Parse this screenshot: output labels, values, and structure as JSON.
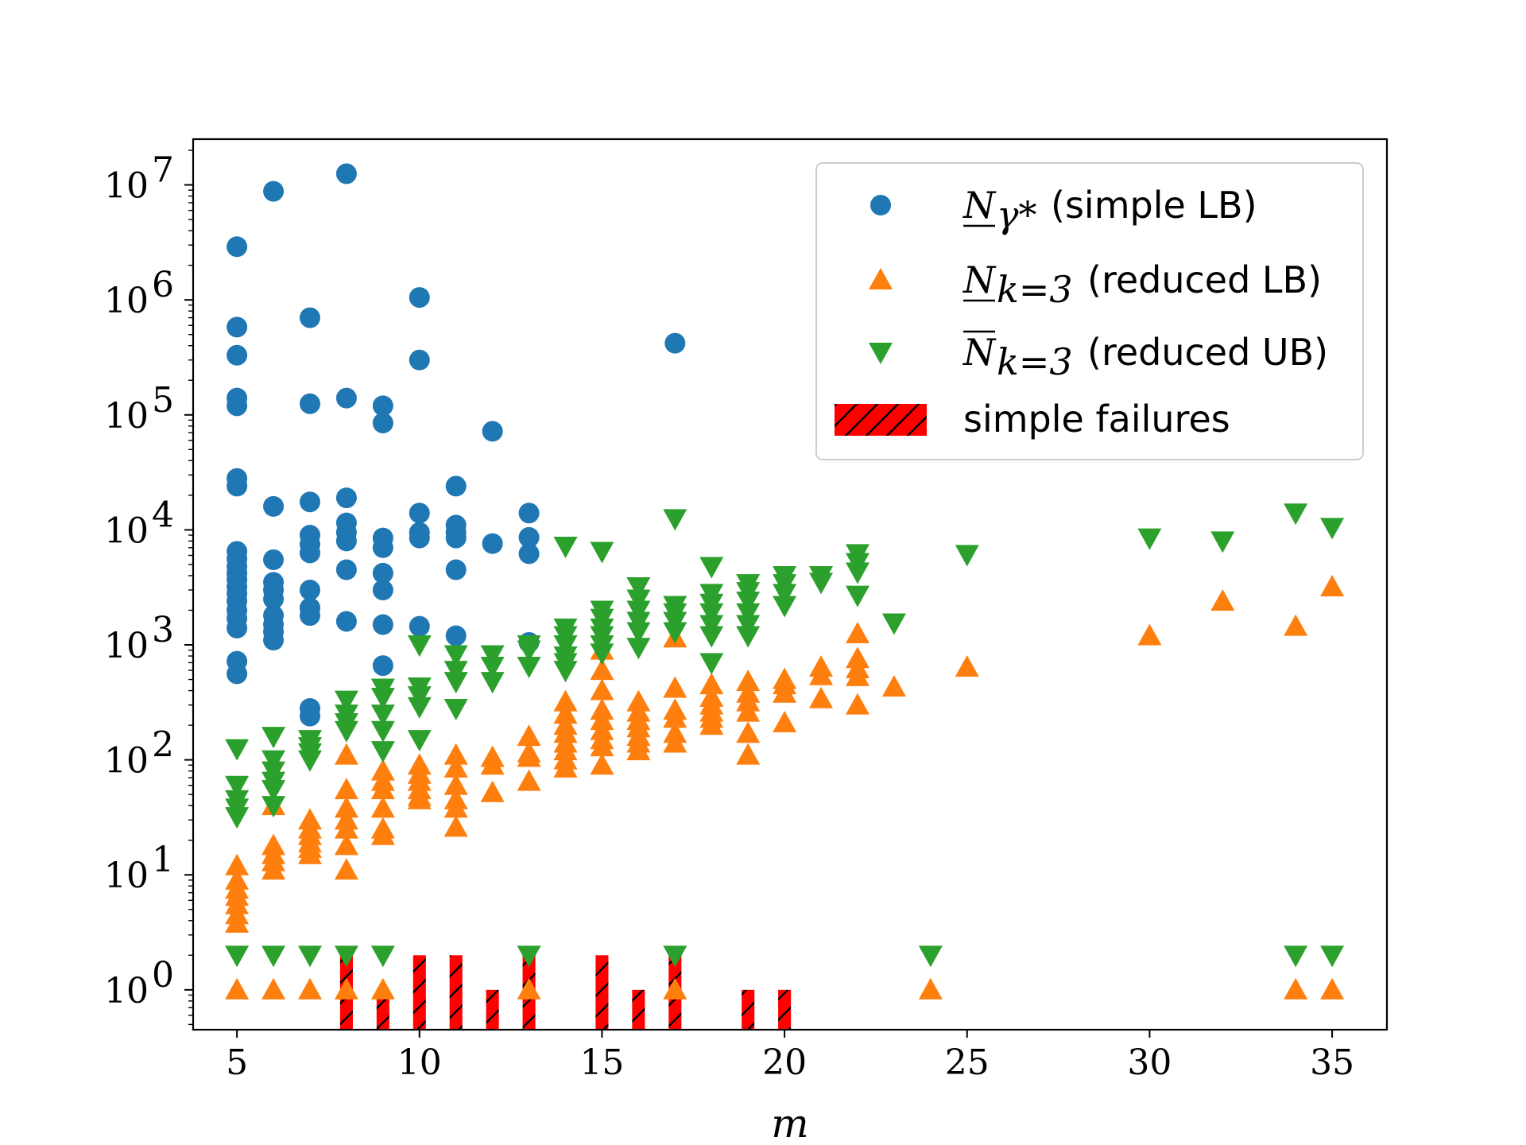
{
  "chart_data": {
    "type": "scatter",
    "title": "",
    "xlabel": "m",
    "ylabel": "",
    "xlim": [
      3.8,
      36.5
    ],
    "ylim": [
      0.45,
      25000000
    ],
    "yscale": "log",
    "grid": false,
    "legend_position": "top-right",
    "x_ticks": [
      5,
      10,
      15,
      20,
      25,
      30,
      35
    ],
    "y_ticks": [
      {
        "value": 1,
        "base": "10",
        "exp": "0"
      },
      {
        "value": 10,
        "base": "10",
        "exp": "1"
      },
      {
        "value": 100,
        "base": "10",
        "exp": "2"
      },
      {
        "value": 1000,
        "base": "10",
        "exp": "3"
      },
      {
        "value": 10000,
        "base": "10",
        "exp": "4"
      },
      {
        "value": 100000,
        "base": "10",
        "exp": "5"
      },
      {
        "value": 1000000,
        "base": "10",
        "exp": "6"
      },
      {
        "value": 10000000,
        "base": "10",
        "exp": "7"
      }
    ],
    "series": [
      {
        "name": "simple LB",
        "legend_symbol": "N",
        "legend_sub": "γ*",
        "legend_symbol_bar": "under",
        "legend_suffix": "(simple LB)",
        "marker": "circle",
        "color": "#1f77b4",
        "points": [
          [
            5,
            2900000
          ],
          [
            5,
            580000
          ],
          [
            5,
            330000
          ],
          [
            5,
            140000
          ],
          [
            5,
            120000
          ],
          [
            5,
            28000
          ],
          [
            5,
            24000
          ],
          [
            5,
            6500
          ],
          [
            5,
            5600
          ],
          [
            5,
            4800
          ],
          [
            5,
            4200
          ],
          [
            5,
            3700
          ],
          [
            5,
            3200
          ],
          [
            5,
            2800
          ],
          [
            5,
            2400
          ],
          [
            5,
            2000
          ],
          [
            5,
            1700
          ],
          [
            5,
            1400
          ],
          [
            5,
            720
          ],
          [
            5,
            560
          ],
          [
            6,
            8800000
          ],
          [
            6,
            16000
          ],
          [
            6,
            5500
          ],
          [
            6,
            3500
          ],
          [
            6,
            3000
          ],
          [
            6,
            2500
          ],
          [
            6,
            1800
          ],
          [
            6,
            1500
          ],
          [
            6,
            1300
          ],
          [
            6,
            1100
          ],
          [
            7,
            700000
          ],
          [
            7,
            125000
          ],
          [
            7,
            17500
          ],
          [
            7,
            9000
          ],
          [
            7,
            7500
          ],
          [
            7,
            6300
          ],
          [
            7,
            3000
          ],
          [
            7,
            2100
          ],
          [
            7,
            1800
          ],
          [
            7,
            280
          ],
          [
            7,
            240
          ],
          [
            8,
            12500000
          ],
          [
            8,
            140000
          ],
          [
            8,
            19000
          ],
          [
            8,
            11500
          ],
          [
            8,
            9500
          ],
          [
            8,
            8000
          ],
          [
            8,
            4500
          ],
          [
            8,
            1600
          ],
          [
            9,
            120000
          ],
          [
            9,
            85000
          ],
          [
            9,
            8500
          ],
          [
            9,
            7000
          ],
          [
            9,
            4200
          ],
          [
            9,
            3000
          ],
          [
            9,
            1500
          ],
          [
            9,
            660
          ],
          [
            10,
            1050000
          ],
          [
            10,
            300000
          ],
          [
            10,
            14000
          ],
          [
            10,
            9500
          ],
          [
            10,
            8500
          ],
          [
            10,
            1450
          ],
          [
            11,
            24000
          ],
          [
            11,
            11000
          ],
          [
            11,
            9500
          ],
          [
            11,
            8500
          ],
          [
            11,
            4500
          ],
          [
            11,
            1200
          ],
          [
            12,
            72000
          ],
          [
            12,
            7600
          ],
          [
            13,
            14000
          ],
          [
            13,
            8600
          ],
          [
            13,
            6200
          ],
          [
            13,
            1050
          ],
          [
            17,
            420000
          ]
        ]
      },
      {
        "name": "reduced LB",
        "legend_symbol": "N",
        "legend_sub": "k=3",
        "legend_symbol_bar": "under",
        "legend_suffix": "(reduced LB)",
        "marker": "triangle-up",
        "color": "#ff7f0e",
        "points": [
          [
            5,
            12
          ],
          [
            5,
            9
          ],
          [
            5,
            7.5
          ],
          [
            5,
            6.5
          ],
          [
            5,
            5.5
          ],
          [
            5,
            4.5
          ],
          [
            5,
            3.8
          ],
          [
            5,
            1
          ],
          [
            6,
            40
          ],
          [
            6,
            18
          ],
          [
            6,
            15
          ],
          [
            6,
            13
          ],
          [
            6,
            11
          ],
          [
            6,
            1
          ],
          [
            7,
            30
          ],
          [
            7,
            25
          ],
          [
            7,
            22
          ],
          [
            7,
            19
          ],
          [
            7,
            17
          ],
          [
            7,
            15
          ],
          [
            7,
            1
          ],
          [
            8,
            110
          ],
          [
            8,
            55
          ],
          [
            8,
            38
          ],
          [
            8,
            30
          ],
          [
            8,
            25
          ],
          [
            8,
            18
          ],
          [
            8,
            11
          ],
          [
            8,
            1
          ],
          [
            9,
            80
          ],
          [
            9,
            65
          ],
          [
            9,
            55
          ],
          [
            9,
            38
          ],
          [
            9,
            25
          ],
          [
            9,
            22
          ],
          [
            9,
            1
          ],
          [
            10,
            90
          ],
          [
            10,
            75
          ],
          [
            10,
            65
          ],
          [
            10,
            55
          ],
          [
            10,
            48
          ],
          [
            10,
            45
          ],
          [
            11,
            110
          ],
          [
            11,
            85
          ],
          [
            11,
            60
          ],
          [
            11,
            45
          ],
          [
            11,
            38
          ],
          [
            11,
            26
          ],
          [
            12,
            105
          ],
          [
            12,
            90
          ],
          [
            12,
            52
          ],
          [
            13,
            160
          ],
          [
            13,
            115
          ],
          [
            13,
            105
          ],
          [
            13,
            65
          ],
          [
            13,
            1
          ],
          [
            14,
            320
          ],
          [
            14,
            250
          ],
          [
            14,
            200
          ],
          [
            14,
            170
          ],
          [
            14,
            140
          ],
          [
            14,
            120
          ],
          [
            14,
            100
          ],
          [
            14,
            85
          ],
          [
            15,
            900
          ],
          [
            15,
            600
          ],
          [
            15,
            400
          ],
          [
            15,
            270
          ],
          [
            15,
            220
          ],
          [
            15,
            180
          ],
          [
            15,
            150
          ],
          [
            15,
            130
          ],
          [
            15,
            90
          ],
          [
            16,
            320
          ],
          [
            16,
            260
          ],
          [
            16,
            220
          ],
          [
            16,
            190
          ],
          [
            16,
            160
          ],
          [
            16,
            140
          ],
          [
            16,
            120
          ],
          [
            17,
            1150
          ],
          [
            17,
            420
          ],
          [
            17,
            270
          ],
          [
            17,
            230
          ],
          [
            17,
            170
          ],
          [
            17,
            140
          ],
          [
            17,
            1
          ],
          [
            18,
            450
          ],
          [
            18,
            350
          ],
          [
            18,
            300
          ],
          [
            18,
            260
          ],
          [
            18,
            230
          ],
          [
            18,
            200
          ],
          [
            19,
            480
          ],
          [
            19,
            380
          ],
          [
            19,
            320
          ],
          [
            19,
            260
          ],
          [
            19,
            170
          ],
          [
            19,
            110
          ],
          [
            20,
            500
          ],
          [
            20,
            450
          ],
          [
            20,
            380
          ],
          [
            20,
            210
          ],
          [
            21,
            640
          ],
          [
            21,
            540
          ],
          [
            21,
            340
          ],
          [
            22,
            1250
          ],
          [
            22,
            760
          ],
          [
            22,
            620
          ],
          [
            22,
            530
          ],
          [
            22,
            300
          ],
          [
            23,
            430
          ],
          [
            24,
            1
          ],
          [
            25,
            640
          ],
          [
            30,
            1200
          ],
          [
            32,
            2400
          ],
          [
            34,
            1450
          ],
          [
            34,
            1
          ],
          [
            35,
            3200
          ],
          [
            35,
            1
          ]
        ]
      },
      {
        "name": "reduced UB",
        "legend_symbol": "N",
        "legend_sub": "k=3",
        "legend_symbol_bar": "over",
        "legend_suffix": "(reduced UB)",
        "marker": "triangle-down",
        "color": "#2ca02c",
        "points": [
          [
            5,
            125
          ],
          [
            5,
            60
          ],
          [
            5,
            45
          ],
          [
            5,
            38
          ],
          [
            5,
            32
          ],
          [
            5,
            2
          ],
          [
            6,
            160
          ],
          [
            6,
            100
          ],
          [
            6,
            80
          ],
          [
            6,
            65
          ],
          [
            6,
            55
          ],
          [
            6,
            40
          ],
          [
            6,
            2
          ],
          [
            7,
            150
          ],
          [
            7,
            130
          ],
          [
            7,
            115
          ],
          [
            7,
            100
          ],
          [
            7,
            2
          ],
          [
            8,
            330
          ],
          [
            8,
            250
          ],
          [
            8,
            210
          ],
          [
            8,
            180
          ],
          [
            8,
            2
          ],
          [
            9,
            420
          ],
          [
            9,
            350
          ],
          [
            9,
            250
          ],
          [
            9,
            180
          ],
          [
            9,
            120
          ],
          [
            9,
            2
          ],
          [
            10,
            1000
          ],
          [
            10,
            430
          ],
          [
            10,
            360
          ],
          [
            10,
            290
          ],
          [
            10,
            150
          ],
          [
            11,
            820
          ],
          [
            11,
            600
          ],
          [
            11,
            480
          ],
          [
            11,
            280
          ],
          [
            12,
            820
          ],
          [
            12,
            650
          ],
          [
            12,
            480
          ],
          [
            13,
            1000
          ],
          [
            13,
            900
          ],
          [
            13,
            650
          ],
          [
            13,
            2
          ],
          [
            14,
            7200
          ],
          [
            14,
            1400
          ],
          [
            14,
            1200
          ],
          [
            14,
            1000
          ],
          [
            14,
            800
          ],
          [
            14,
            700
          ],
          [
            14,
            600
          ],
          [
            15,
            6500
          ],
          [
            15,
            2000
          ],
          [
            15,
            1700
          ],
          [
            15,
            1400
          ],
          [
            15,
            1200
          ],
          [
            15,
            1000
          ],
          [
            15,
            850
          ],
          [
            16,
            3200
          ],
          [
            16,
            2500
          ],
          [
            16,
            2000
          ],
          [
            16,
            1600
          ],
          [
            16,
            1300
          ],
          [
            16,
            950
          ],
          [
            17,
            12500
          ],
          [
            17,
            2200
          ],
          [
            17,
            1900
          ],
          [
            17,
            1600
          ],
          [
            17,
            1300
          ],
          [
            17,
            2
          ],
          [
            18,
            4800
          ],
          [
            18,
            2800
          ],
          [
            18,
            2300
          ],
          [
            18,
            1900
          ],
          [
            18,
            1500
          ],
          [
            18,
            1200
          ],
          [
            18,
            700
          ],
          [
            19,
            3400
          ],
          [
            19,
            2900
          ],
          [
            19,
            2400
          ],
          [
            19,
            1900
          ],
          [
            19,
            1500
          ],
          [
            19,
            1200
          ],
          [
            20,
            4000
          ],
          [
            20,
            3400
          ],
          [
            20,
            2800
          ],
          [
            20,
            2200
          ],
          [
            21,
            4000
          ],
          [
            21,
            3500
          ],
          [
            22,
            6200
          ],
          [
            22,
            5200
          ],
          [
            22,
            4300
          ],
          [
            22,
            2700
          ],
          [
            23,
            1550
          ],
          [
            24,
            2
          ],
          [
            25,
            6100
          ],
          [
            30,
            8500
          ],
          [
            32,
            8000
          ],
          [
            34,
            14000
          ],
          [
            34,
            2
          ],
          [
            35,
            10500
          ],
          [
            35,
            2
          ]
        ]
      }
    ],
    "bars": {
      "name": "simple failures",
      "legend_label": "simple failures",
      "color": "#ff0000",
      "hatch_color": "#000000",
      "x": [
        8,
        9,
        10,
        11,
        12,
        13,
        15,
        16,
        17,
        19,
        20
      ],
      "values": [
        2,
        1,
        2,
        2,
        1,
        2,
        2,
        1,
        2,
        1,
        1
      ]
    }
  }
}
